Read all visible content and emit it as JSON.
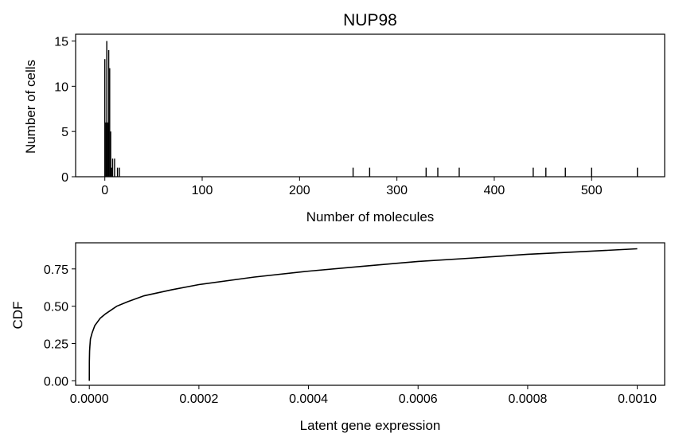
{
  "chart_data": [
    {
      "type": "bar",
      "title": "NUP98",
      "xlabel": "Number of molecules",
      "ylabel": "Number of cells",
      "xlim": [
        -30,
        575
      ],
      "ylim": [
        0,
        15.75
      ],
      "xticks": [
        0,
        100,
        200,
        300,
        400,
        500
      ],
      "yticks": [
        0,
        5,
        10,
        15
      ],
      "xtick_labels": [
        "0",
        "100",
        "200",
        "300",
        "400",
        "500"
      ],
      "ytick_labels": [
        "0",
        "5",
        "10",
        "15"
      ],
      "grid": false,
      "x": [
        0,
        1,
        2,
        3,
        4,
        5,
        6,
        7,
        8,
        10,
        13,
        15,
        255,
        272,
        330,
        342,
        364,
        440,
        453,
        473,
        500,
        547
      ],
      "values": [
        13,
        6,
        15,
        6,
        14,
        12,
        5,
        1,
        2,
        2,
        1,
        1,
        1,
        1,
        1,
        1,
        1,
        1,
        1,
        1,
        1,
        1
      ]
    },
    {
      "type": "line",
      "title": "",
      "xlabel": "Latent gene expression",
      "ylabel": "CDF",
      "xlim": [
        -2.5e-05,
        0.00105
      ],
      "ylim": [
        -0.03,
        0.925
      ],
      "xticks": [
        0,
        0.0002,
        0.0004,
        0.0006,
        0.0008,
        0.001
      ],
      "yticks": [
        0,
        0.25,
        0.5,
        0.75
      ],
      "xtick_labels": [
        "0.0000",
        "0.0002",
        "0.0004",
        "0.0006",
        "0.0008",
        "0.0010"
      ],
      "ytick_labels": [
        "0.00",
        "0.25",
        "0.50",
        "0.75"
      ],
      "grid": false,
      "x": [
        0,
        1e-07,
        5e-07,
        1e-06,
        2e-06,
        5e-06,
        1e-05,
        2e-05,
        3e-05,
        5e-05,
        7e-05,
        0.0001,
        0.00015,
        0.0002,
        0.0003,
        0.0004,
        0.0005,
        0.0006,
        0.0007,
        0.0008,
        0.0009,
        0.001
      ],
      "y": [
        0.0,
        0.13,
        0.2,
        0.23,
        0.28,
        0.32,
        0.37,
        0.42,
        0.45,
        0.5,
        0.53,
        0.57,
        0.61,
        0.645,
        0.695,
        0.735,
        0.768,
        0.8,
        0.823,
        0.848,
        0.866,
        0.885
      ]
    }
  ]
}
